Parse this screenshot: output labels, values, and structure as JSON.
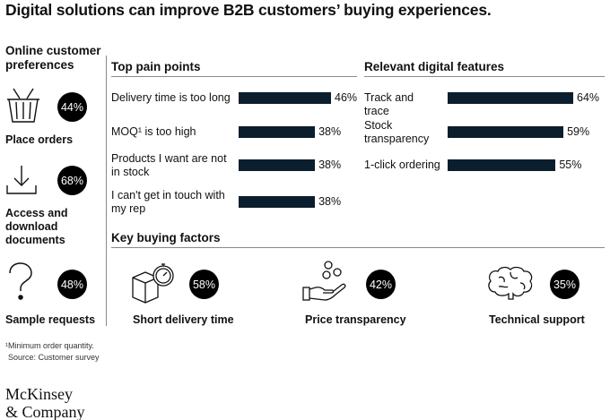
{
  "title": "Digital solutions can improve B2B customers’ buying experiences.",
  "online": {
    "heading": "Online customer preferences",
    "items": [
      {
        "label": "Place orders",
        "value": "44%"
      },
      {
        "label": "Access and download documents",
        "value": "68%"
      },
      {
        "label": "Sample requests",
        "value": "48%"
      }
    ]
  },
  "pain": {
    "heading": "Top pain points",
    "items": [
      {
        "label": "Delivery time is too long",
        "value": 46,
        "value_label": "46%"
      },
      {
        "label": "MOQ¹ is too high",
        "value": 38,
        "value_label": "38%"
      },
      {
        "label": "Products I want are not in stock",
        "value": 38,
        "value_label": "38%"
      },
      {
        "label": "I can't get in touch with my rep",
        "value": 38,
        "value_label": "38%"
      }
    ]
  },
  "features": {
    "heading": "Relevant digital features",
    "items": [
      {
        "label": "Track and trace",
        "value": 64,
        "value_label": "64%"
      },
      {
        "label": "Stock transparency",
        "value": 59,
        "value_label": "59%"
      },
      {
        "label": "1-click ordering",
        "value": 55,
        "value_label": "55%"
      }
    ]
  },
  "factors": {
    "heading": "Key buying factors",
    "items": [
      {
        "label": "Short delivery time",
        "value": "58%"
      },
      {
        "label": "Price transparency",
        "value": "42%"
      },
      {
        "label": "Technical support",
        "value": "35%"
      }
    ]
  },
  "footnote": "¹Minimum order quantity.",
  "source": "Source: Customer survey",
  "logo": {
    "line1": "McKinsey",
    "line2": "& Company"
  },
  "colors": {
    "bar": "#0b1e2e",
    "badge": "#000000",
    "rule": "#8a8a8a"
  },
  "chart_data": [
    {
      "type": "bar",
      "title": "Top pain points",
      "categories": [
        "Delivery time is too long",
        "MOQ¹ is too high",
        "Products I want are not in stock",
        "I can't get in touch with my rep"
      ],
      "values": [
        46,
        38,
        38,
        38
      ]
    },
    {
      "type": "bar",
      "title": "Relevant digital features",
      "categories": [
        "Track and trace",
        "Stock transparency",
        "1-click ordering"
      ],
      "values": [
        64,
        59,
        55
      ]
    }
  ]
}
